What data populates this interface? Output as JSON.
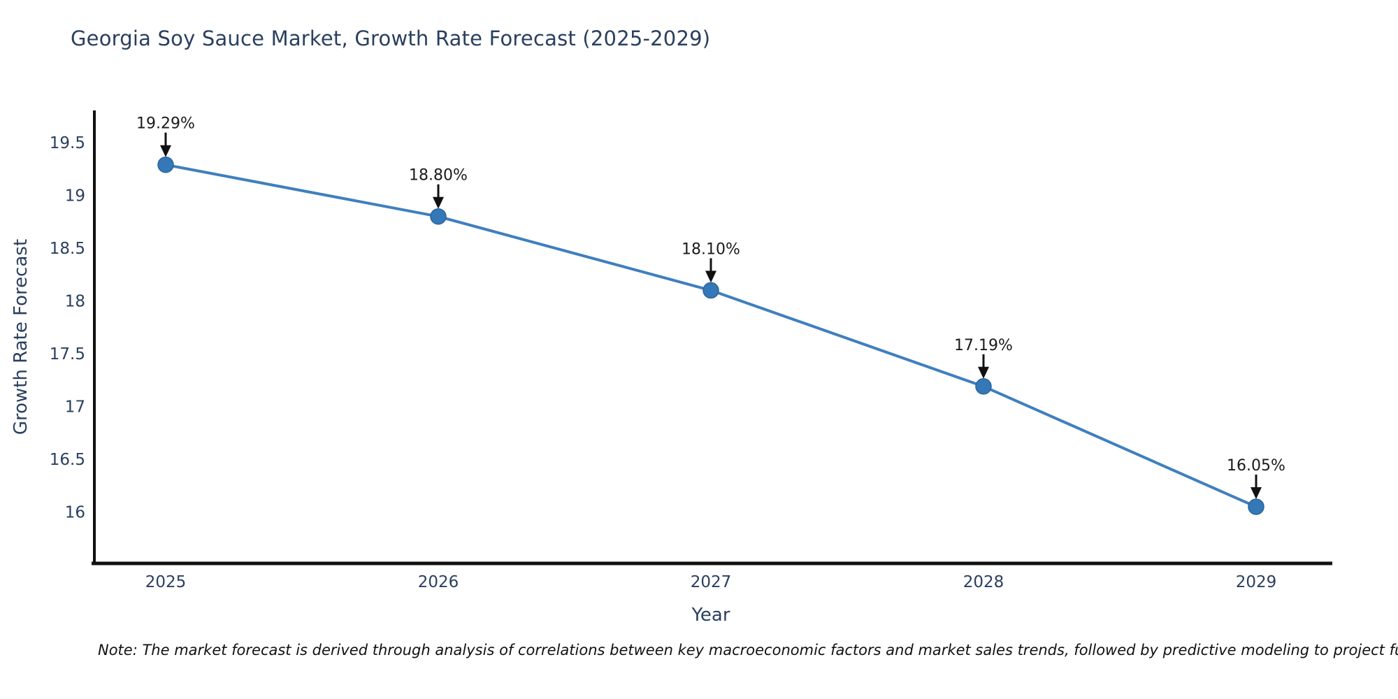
{
  "page": {
    "background": "#ffffff"
  },
  "chart_data": {
    "type": "line",
    "title": "Georgia Soy Sauce Market, Growth Rate Forecast (2025-2029)",
    "xlabel": "Year",
    "ylabel": "Growth Rate Forecast",
    "categories": [
      "2025",
      "2026",
      "2027",
      "2028",
      "2029"
    ],
    "series": [
      {
        "name": "Growth Rate Forecast",
        "values": [
          19.29,
          18.8,
          18.1,
          17.19,
          16.05
        ]
      }
    ],
    "point_labels": [
      "19.29%",
      "18.80%",
      "18.10%",
      "17.19%",
      "16.05%"
    ],
    "y_tick_labels": [
      "19.5",
      "19",
      "18.5",
      "18",
      "17.5",
      "17",
      "16.5",
      "16"
    ],
    "y_tick_values": [
      19.5,
      19,
      18.5,
      18,
      17.5,
      17,
      16.5,
      16
    ],
    "ylim": [
      15.51,
      19.8
    ],
    "grid": false,
    "legend": "none",
    "marker_style": "circle",
    "annotation_arrow": "down",
    "colors": {
      "line": "#3f7fbe",
      "marker": "#3478b7",
      "marker_border": "#2a659c",
      "axis": "#111111",
      "tick_text": "#2a3f5f",
      "annotation_text": "#1a1a1a",
      "title_text": "#2a3f5f",
      "arrow": "#111111"
    }
  },
  "footnote": "Note: The market forecast is derived through analysis of correlations between key macroeconomic factors and market sales trends, followed by predictive modeling to project future sal"
}
